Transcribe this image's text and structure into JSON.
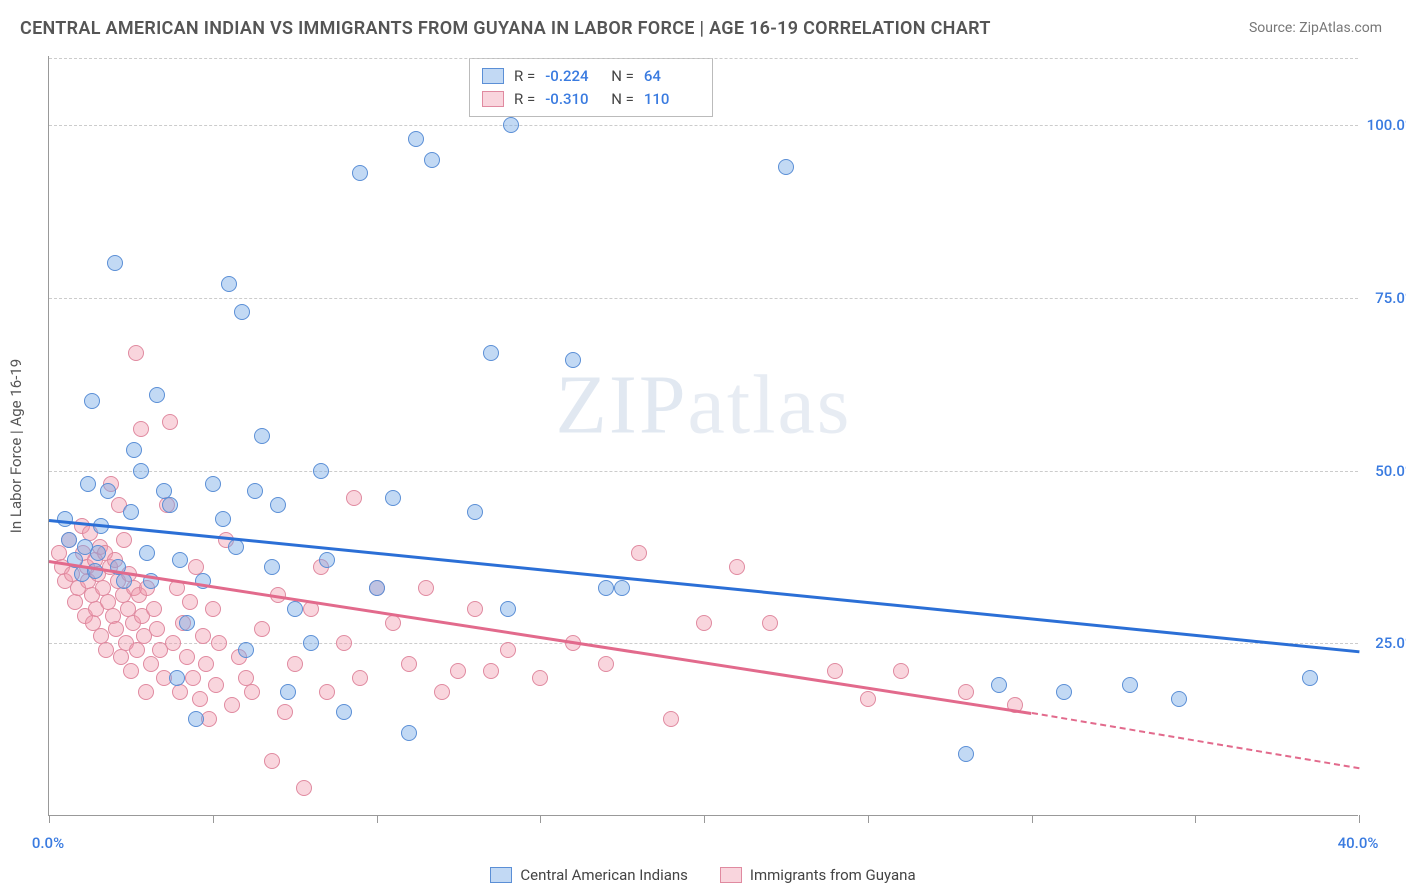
{
  "title": "CENTRAL AMERICAN INDIAN VS IMMIGRANTS FROM GUYANA IN LABOR FORCE | AGE 16-19 CORRELATION CHART",
  "source": "Source: ZipAtlas.com",
  "ylabel": "In Labor Force | Age 16-19",
  "watermark_a": "ZIP",
  "watermark_b": "atlas",
  "colors": {
    "blue_fill": "rgba(120,170,230,0.45)",
    "blue_stroke": "#5b8fd6",
    "pink_fill": "rgba(240,150,170,0.40)",
    "pink_stroke": "#e08aa0",
    "blue_line": "#2b6fd6",
    "pink_line": "#e26a8c",
    "tick_blue": "#3a7be0",
    "grid": "#cccccc"
  },
  "axes": {
    "xlim": [
      0,
      40
    ],
    "ylim": [
      0,
      110
    ],
    "y_ticks": [
      25,
      50,
      75,
      100
    ],
    "y_tick_labels": [
      "25.0%",
      "50.0%",
      "75.0%",
      "100.0%"
    ],
    "x_ticks": [
      0,
      10,
      20,
      30,
      40
    ],
    "x_tick_labels_shown": {
      "0": "0.0%",
      "40": "40.0%"
    },
    "x_minor_ticks": [
      5,
      15,
      25,
      35
    ]
  },
  "stats": {
    "series1": {
      "R_label": "R =",
      "R": "-0.224",
      "N_label": "N =",
      "N": "64"
    },
    "series2": {
      "R_label": "R =",
      "R": "-0.310",
      "N_label": "N =",
      "N": "110"
    }
  },
  "legend": {
    "series1": "Central American Indians",
    "series2": "Immigrants from Guyana"
  },
  "marker": {
    "radius": 8,
    "stroke_width": 1.4
  },
  "trend_lines": {
    "blue": {
      "x1": 0,
      "y1": 43,
      "x2": 40,
      "y2": 24
    },
    "pink_solid": {
      "x1": 0,
      "y1": 37,
      "x2": 30,
      "y2": 15
    },
    "pink_dash": {
      "x1": 30,
      "y1": 15,
      "x2": 40,
      "y2": 7
    }
  },
  "points_blue": [
    [
      0.5,
      43
    ],
    [
      0.6,
      40
    ],
    [
      0.8,
      37
    ],
    [
      1.0,
      35
    ],
    [
      1.1,
      39
    ],
    [
      1.2,
      48
    ],
    [
      1.3,
      60
    ],
    [
      1.4,
      35.5
    ],
    [
      1.5,
      38
    ],
    [
      1.6,
      42
    ],
    [
      1.8,
      47
    ],
    [
      2.0,
      80
    ],
    [
      2.1,
      36
    ],
    [
      2.3,
      34
    ],
    [
      2.5,
      44
    ],
    [
      2.6,
      53
    ],
    [
      2.8,
      50
    ],
    [
      3.0,
      38
    ],
    [
      3.1,
      34
    ],
    [
      3.3,
      61
    ],
    [
      3.5,
      47
    ],
    [
      3.7,
      45
    ],
    [
      3.9,
      20
    ],
    [
      4.0,
      37
    ],
    [
      4.2,
      28
    ],
    [
      4.5,
      14
    ],
    [
      4.7,
      34
    ],
    [
      5.0,
      48
    ],
    [
      5.3,
      43
    ],
    [
      5.5,
      77
    ],
    [
      5.7,
      39
    ],
    [
      5.9,
      73
    ],
    [
      6.0,
      24
    ],
    [
      6.3,
      47
    ],
    [
      6.5,
      55
    ],
    [
      6.8,
      36
    ],
    [
      7.0,
      45
    ],
    [
      7.3,
      18
    ],
    [
      7.5,
      30
    ],
    [
      8.0,
      25
    ],
    [
      8.3,
      50
    ],
    [
      8.5,
      37
    ],
    [
      9.0,
      15
    ],
    [
      9.5,
      93
    ],
    [
      10.0,
      33
    ],
    [
      10.5,
      46
    ],
    [
      11.0,
      12
    ],
    [
      11.2,
      98
    ],
    [
      11.7,
      95
    ],
    [
      13.0,
      44
    ],
    [
      13.5,
      67
    ],
    [
      14.0,
      30
    ],
    [
      14.1,
      100
    ],
    [
      16.0,
      66
    ],
    [
      17.0,
      33
    ],
    [
      17.5,
      33
    ],
    [
      22.5,
      94
    ],
    [
      28.0,
      9
    ],
    [
      29.0,
      19
    ],
    [
      31.0,
      18
    ],
    [
      33.0,
      19
    ],
    [
      34.5,
      17
    ],
    [
      38.5,
      20
    ]
  ],
  "points_pink": [
    [
      0.3,
      38
    ],
    [
      0.4,
      36
    ],
    [
      0.5,
      34
    ],
    [
      0.6,
      40
    ],
    [
      0.7,
      35
    ],
    [
      0.8,
      31
    ],
    [
      0.9,
      33
    ],
    [
      1.0,
      42
    ],
    [
      1.05,
      38
    ],
    [
      1.1,
      29
    ],
    [
      1.15,
      36
    ],
    [
      1.2,
      34
    ],
    [
      1.25,
      41
    ],
    [
      1.3,
      32
    ],
    [
      1.35,
      28
    ],
    [
      1.4,
      37
    ],
    [
      1.45,
      30
    ],
    [
      1.5,
      35
    ],
    [
      1.55,
      39
    ],
    [
      1.6,
      26
    ],
    [
      1.65,
      33
    ],
    [
      1.7,
      38
    ],
    [
      1.75,
      24
    ],
    [
      1.8,
      31
    ],
    [
      1.85,
      36
    ],
    [
      1.9,
      48
    ],
    [
      1.95,
      29
    ],
    [
      2.0,
      37
    ],
    [
      2.05,
      27
    ],
    [
      2.1,
      34
    ],
    [
      2.15,
      45
    ],
    [
      2.2,
      23
    ],
    [
      2.25,
      32
    ],
    [
      2.3,
      40
    ],
    [
      2.35,
      25
    ],
    [
      2.4,
      30
    ],
    [
      2.45,
      35
    ],
    [
      2.5,
      21
    ],
    [
      2.55,
      28
    ],
    [
      2.6,
      33
    ],
    [
      2.65,
      67
    ],
    [
      2.7,
      24
    ],
    [
      2.75,
      32
    ],
    [
      2.8,
      56
    ],
    [
      2.85,
      29
    ],
    [
      2.9,
      26
    ],
    [
      2.95,
      18
    ],
    [
      3.0,
      33
    ],
    [
      3.1,
      22
    ],
    [
      3.2,
      30
    ],
    [
      3.3,
      27
    ],
    [
      3.4,
      24
    ],
    [
      3.5,
      20
    ],
    [
      3.6,
      45
    ],
    [
      3.7,
      57
    ],
    [
      3.8,
      25
    ],
    [
      3.9,
      33
    ],
    [
      4.0,
      18
    ],
    [
      4.1,
      28
    ],
    [
      4.2,
      23
    ],
    [
      4.3,
      31
    ],
    [
      4.4,
      20
    ],
    [
      4.5,
      36
    ],
    [
      4.6,
      17
    ],
    [
      4.7,
      26
    ],
    [
      4.8,
      22
    ],
    [
      4.9,
      14
    ],
    [
      5.0,
      30
    ],
    [
      5.1,
      19
    ],
    [
      5.2,
      25
    ],
    [
      5.4,
      40
    ],
    [
      5.6,
      16
    ],
    [
      5.8,
      23
    ],
    [
      6.0,
      20
    ],
    [
      6.2,
      18
    ],
    [
      6.5,
      27
    ],
    [
      6.8,
      8
    ],
    [
      7.0,
      32
    ],
    [
      7.2,
      15
    ],
    [
      7.5,
      22
    ],
    [
      7.8,
      4
    ],
    [
      8.0,
      30
    ],
    [
      8.3,
      36
    ],
    [
      8.5,
      18
    ],
    [
      9.0,
      25
    ],
    [
      9.3,
      46
    ],
    [
      9.5,
      20
    ],
    [
      10.0,
      33
    ],
    [
      10.5,
      28
    ],
    [
      11.0,
      22
    ],
    [
      11.5,
      33
    ],
    [
      12.0,
      18
    ],
    [
      12.5,
      21
    ],
    [
      13.0,
      30
    ],
    [
      13.5,
      21
    ],
    [
      14.0,
      24
    ],
    [
      15.0,
      20
    ],
    [
      16.0,
      25
    ],
    [
      17.0,
      22
    ],
    [
      18.0,
      38
    ],
    [
      19.0,
      14
    ],
    [
      20.0,
      28
    ],
    [
      21.0,
      36
    ],
    [
      22.0,
      28
    ],
    [
      24.0,
      21
    ],
    [
      25.0,
      17
    ],
    [
      26.0,
      21
    ],
    [
      28.0,
      18
    ],
    [
      29.5,
      16
    ]
  ]
}
